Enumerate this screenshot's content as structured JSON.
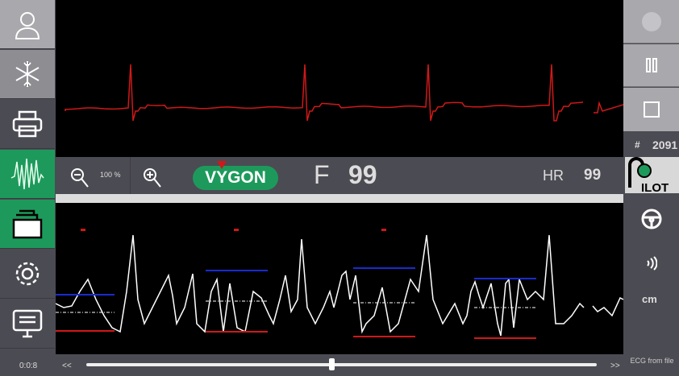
{
  "left_sidebar": {
    "items": [
      {
        "name": "patient",
        "icon": "person-icon"
      },
      {
        "name": "freeze",
        "icon": "snowflake-icon"
      },
      {
        "name": "print",
        "icon": "printer-icon"
      },
      {
        "name": "ecg",
        "icon": "waveform-icon",
        "active": true
      },
      {
        "name": "files",
        "icon": "folder-icon",
        "active": true
      },
      {
        "name": "settings",
        "icon": "gear-icon"
      },
      {
        "name": "display",
        "icon": "monitor-icon"
      }
    ],
    "time": "0:0:8"
  },
  "toolbar": {
    "zoom_level": "100 %",
    "brand": "VYGON",
    "mode": "F",
    "mode_value": "99",
    "hr_label": "HR",
    "hr_value": "99"
  },
  "right_sidebar": {
    "counter_symbol": "#",
    "counter": "2091",
    "logo": "TLS PILOT",
    "unit": "cm",
    "source": "ECG from file"
  },
  "playback": {
    "rewind": "<<",
    "forward": ">>",
    "position_fraction": 0.48
  },
  "colors": {
    "trace_top": "#d01818",
    "trace_bottom": "#ffffff",
    "green": "#1d9a5b",
    "marker_blue": "#1a2bd0",
    "marker_red": "#d01818"
  }
}
